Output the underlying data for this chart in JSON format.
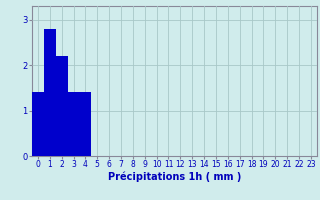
{
  "categories": [
    0,
    1,
    2,
    3,
    4,
    5,
    6,
    7,
    8,
    9,
    10,
    11,
    12,
    13,
    14,
    15,
    16,
    17,
    18,
    19,
    20,
    21,
    22,
    23
  ],
  "values": [
    1.4,
    2.8,
    2.2,
    1.4,
    1.4,
    0,
    0,
    0,
    0,
    0,
    0,
    0,
    0,
    0,
    0,
    0,
    0,
    0,
    0,
    0,
    0,
    0,
    0,
    0
  ],
  "bar_color": "#0000cc",
  "background_color": "#d0ecec",
  "grid_color": "#a8c8c8",
  "xlabel": "Précipitations 1h ( mm )",
  "ylim": [
    0,
    3.3
  ],
  "xlim": [
    -0.5,
    23.5
  ],
  "yticks": [
    0,
    1,
    2,
    3
  ],
  "xticks": [
    0,
    1,
    2,
    3,
    4,
    5,
    6,
    7,
    8,
    9,
    10,
    11,
    12,
    13,
    14,
    15,
    16,
    17,
    18,
    19,
    20,
    21,
    22,
    23
  ],
  "tick_fontsize": 5.5,
  "label_fontsize": 7.0,
  "bar_width": 1.0
}
